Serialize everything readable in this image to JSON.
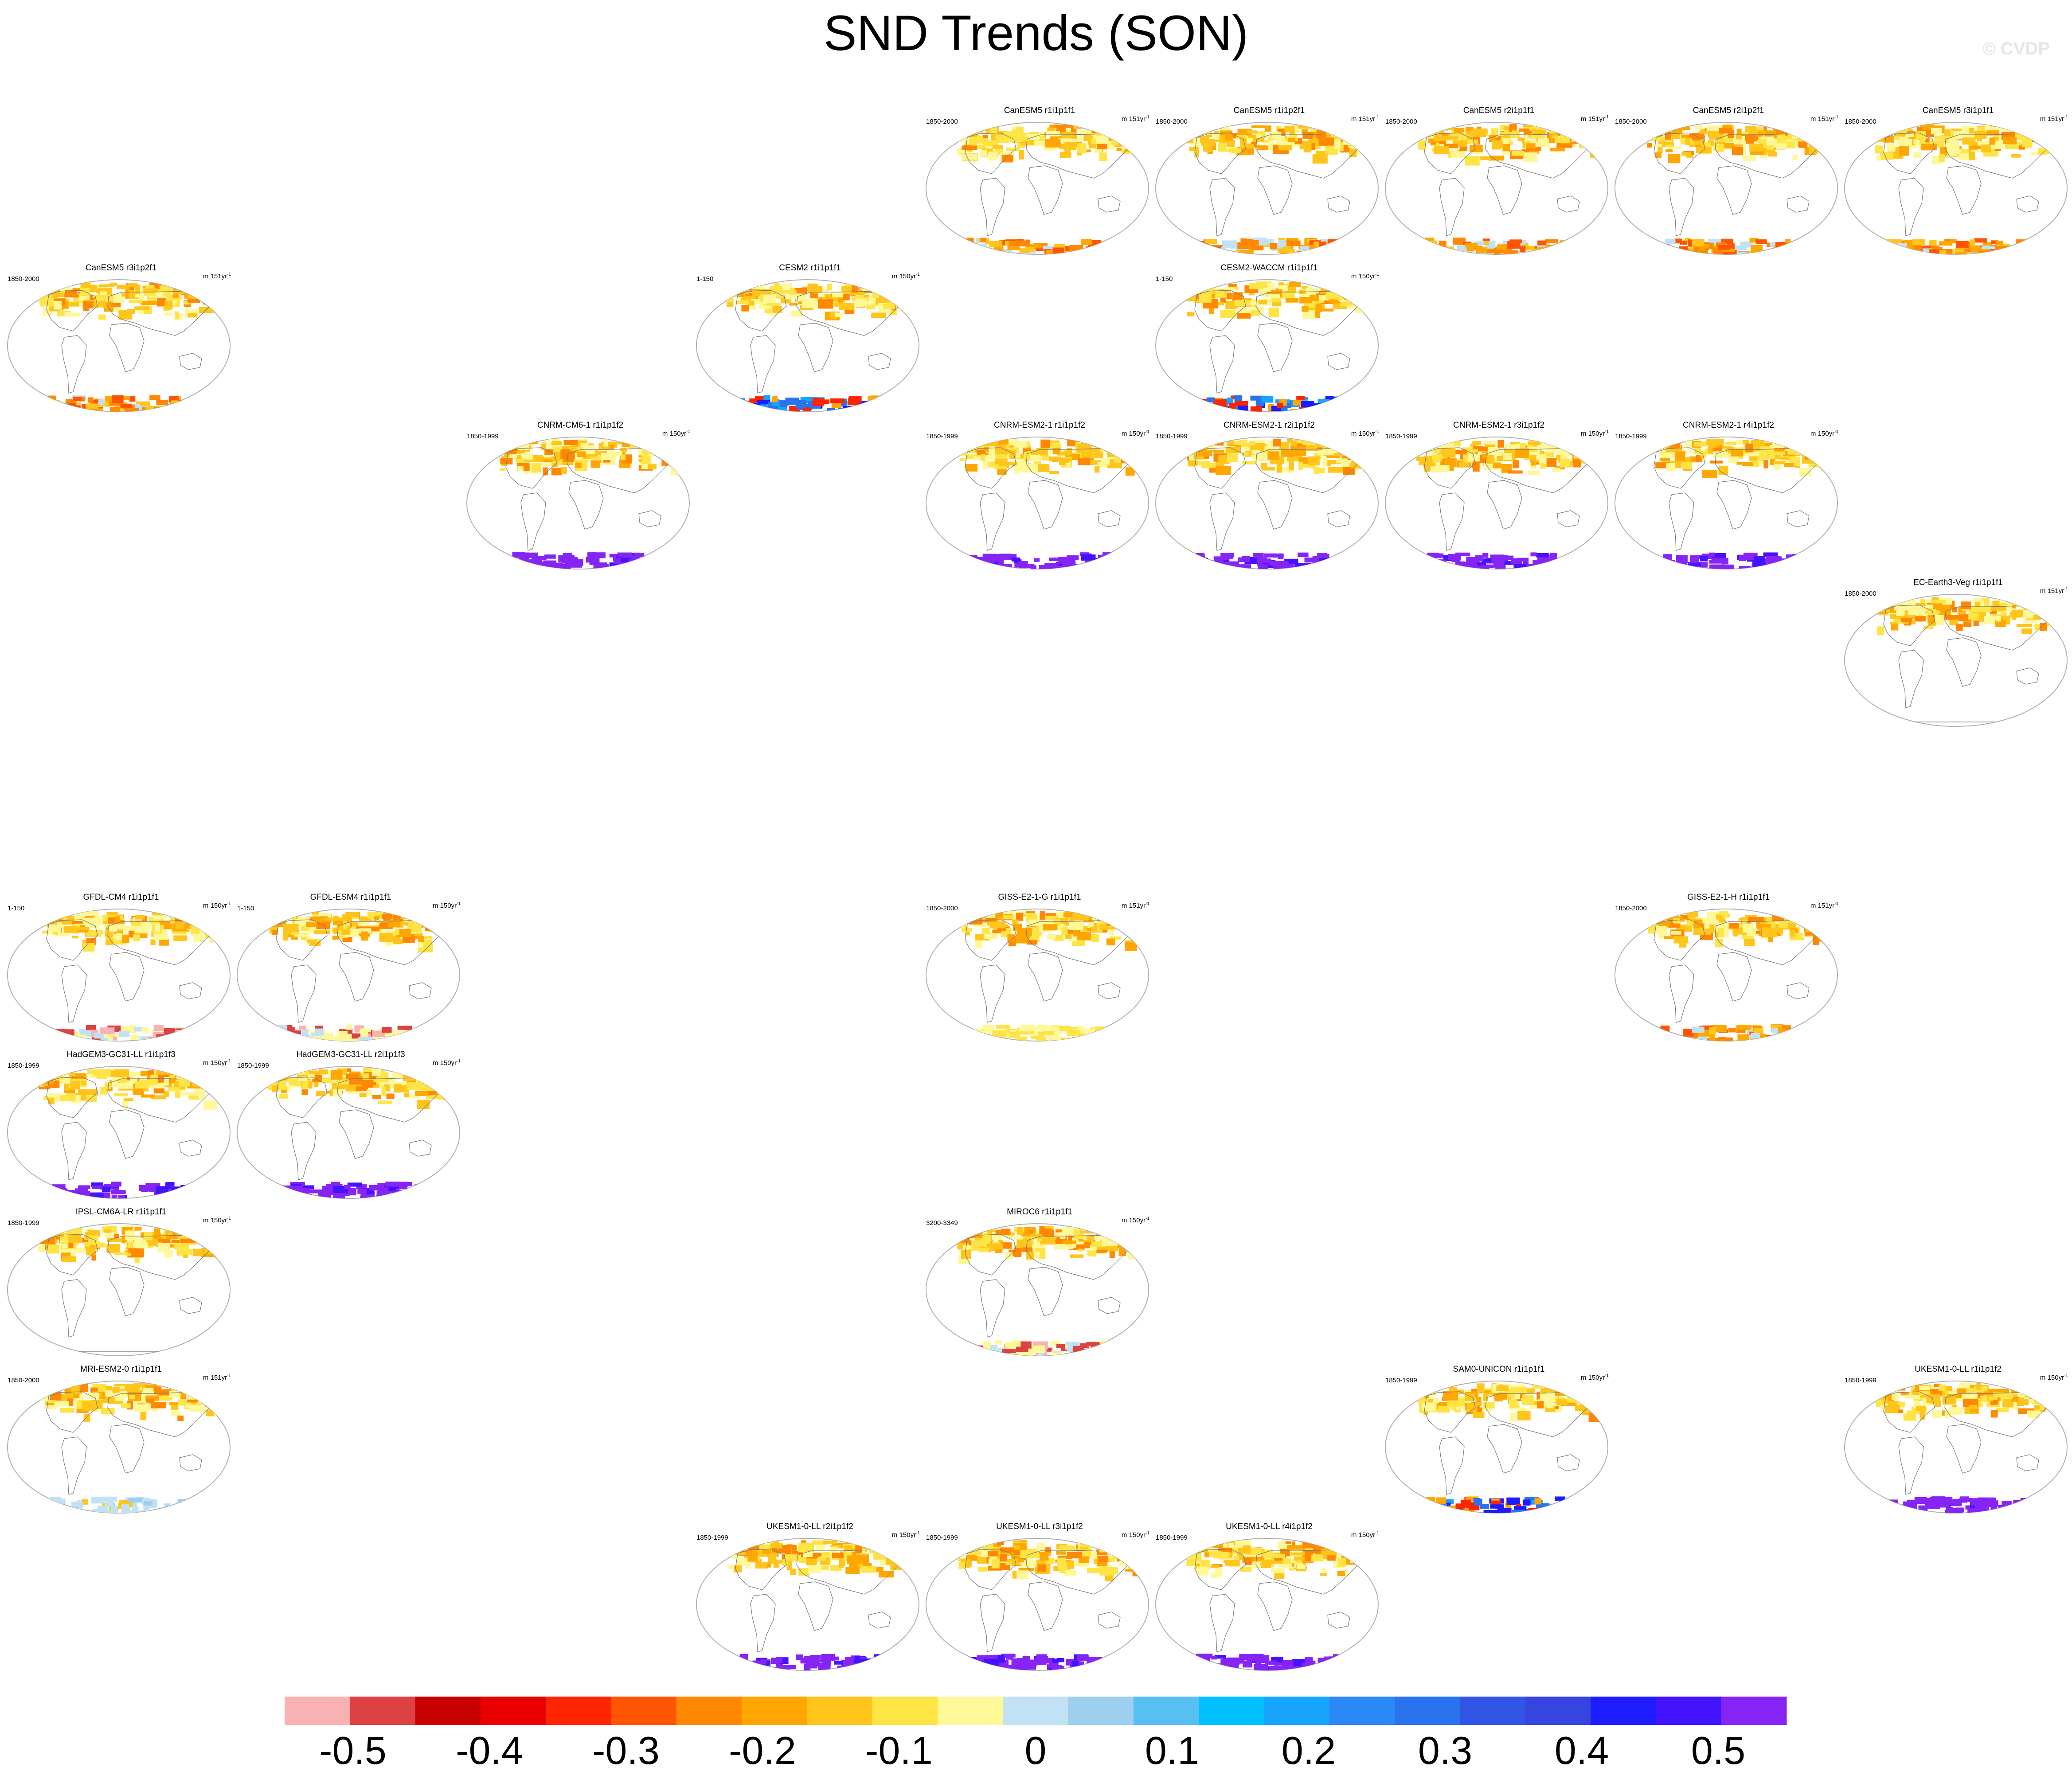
{
  "title": "SND Trends (SON)",
  "watermark": "© CVDP",
  "chart_data": {
    "type": "heatmap",
    "title": "SND Trends (SON)",
    "description_of_panels": "Global map panels of seasonal (SON) snow depth trends per CMIP6 model member; shading shows trend magnitude",
    "colorbar": {
      "min": -0.55,
      "max": 0.55,
      "step": 0.05,
      "tick_labels": [
        "-0.5",
        "-0.4",
        "-0.3",
        "-0.2",
        "-0.1",
        "0",
        "0.1",
        "0.2",
        "0.3",
        "0.4",
        "0.5"
      ],
      "tick_values": [
        -0.5,
        -0.4,
        -0.3,
        -0.2,
        -0.1,
        0,
        0.1,
        0.2,
        0.3,
        0.4,
        0.5
      ],
      "colors": [
        "#f9b2b2",
        "#dd4141",
        "#c90000",
        "#ea0000",
        "#ff2400",
        "#ff5500",
        "#ff8800",
        "#ffa700",
        "#ffc51b",
        "#ffe445",
        "#fff899",
        "#c1e2f5",
        "#9ecfee",
        "#57bff2",
        "#00c0ff",
        "#16a4ff",
        "#2a88f7",
        "#2a73ee",
        "#3355e5",
        "#3645e0",
        "#1c1cff",
        "#4312ff",
        "#8624f5"
      ]
    },
    "panels": [
      {
        "title": "CanESM5 r1i1p1f1",
        "years": "1850-2000",
        "units": "m 151yr",
        "sup": "-1",
        "ns": "nh",
        "ant": "pos",
        "row": 0,
        "col": 4
      },
      {
        "title": "CanESM5 r1i1p2f1",
        "years": "1850-2000",
        "units": "m 151yr",
        "sup": "-1",
        "ns": "nh",
        "ant": "pos",
        "row": 0,
        "col": 5
      },
      {
        "title": "CanESM5 r2i1p1f1",
        "years": "1850-2000",
        "units": "m 151yr",
        "sup": "-1",
        "ns": "nh",
        "ant": "pos",
        "row": 0,
        "col": 6
      },
      {
        "title": "CanESM5 r2i1p2f1",
        "years": "1850-2000",
        "units": "m 151yr",
        "sup": "-1",
        "ns": "nh",
        "ant": "pos",
        "row": 0,
        "col": 7
      },
      {
        "title": "CanESM5 r3i1p1f1",
        "years": "1850-2000",
        "units": "m 151yr",
        "sup": "-1",
        "ns": "nh",
        "ant": "pos",
        "row": 0,
        "col": 8
      },
      {
        "title": "CanESM5 r3i1p2f1",
        "years": "1850-2000",
        "units": "m 151yr",
        "sup": "-1",
        "ns": "nh",
        "ant": "pos",
        "row": 1,
        "col": 0
      },
      {
        "title": "CESM2 r1i1p1f1",
        "years": "1-150",
        "units": "m 150yr",
        "sup": "-1",
        "ns": "nh",
        "ant": "mix",
        "row": 1,
        "col": 3
      },
      {
        "title": "CESM2-WACCM r1i1p1f1",
        "years": "1-150",
        "units": "m 150yr",
        "sup": "-1",
        "ns": "nh",
        "ant": "mix",
        "row": 1,
        "col": 5
      },
      {
        "title": "CNRM-CM6-1 r1i1p1f2",
        "years": "1850-1999",
        "units": "m 150yr",
        "sup": "-1",
        "ns": "nh",
        "ant": "neg",
        "row": 2,
        "col": 2
      },
      {
        "title": "CNRM-ESM2-1 r1i1p1f2",
        "years": "1850-1999",
        "units": "m 150yr",
        "sup": "-1",
        "ns": "nh",
        "ant": "neg",
        "row": 2,
        "col": 4
      },
      {
        "title": "CNRM-ESM2-1 r2i1p1f2",
        "years": "1850-1999",
        "units": "m 150yr",
        "sup": "-1",
        "ns": "nh",
        "ant": "neg",
        "row": 2,
        "col": 5
      },
      {
        "title": "CNRM-ESM2-1 r3i1p1f2",
        "years": "1850-1999",
        "units": "m 150yr",
        "sup": "-1",
        "ns": "nh",
        "ant": "neg",
        "row": 2,
        "col": 6
      },
      {
        "title": "CNRM-ESM2-1 r4i1p1f2",
        "years": "1850-1999",
        "units": "m 150yr",
        "sup": "-1",
        "ns": "nh",
        "ant": "neg",
        "row": 2,
        "col": 7
      },
      {
        "title": "EC-Earth3-Veg r1i1p1f1",
        "years": "1850-2000",
        "units": "m 151yr",
        "sup": "-1",
        "ns": "nh",
        "ant": "none",
        "row": 3,
        "col": 8
      },
      {
        "title": "GFDL-CM4 r1i1p1f1",
        "years": "1-150",
        "units": "m 150yr",
        "sup": "-1",
        "ns": "nh",
        "ant": "light",
        "row": 5,
        "col": 0
      },
      {
        "title": "GFDL-ESM4 r1i1p1f1",
        "years": "1-150",
        "units": "m 150yr",
        "sup": "-1",
        "ns": "nh",
        "ant": "light",
        "row": 5,
        "col": 1
      },
      {
        "title": "GISS-E2-1-G r1i1p1f1",
        "years": "1850-2000",
        "units": "m 151yr",
        "sup": "-1",
        "ns": "nh",
        "ant": "pale",
        "row": 5,
        "col": 4
      },
      {
        "title": "GISS-E2-1-H r1i1p1f1",
        "years": "1850-2000",
        "units": "m 151yr",
        "sup": "-1",
        "ns": "nh",
        "ant": "pos",
        "row": 5,
        "col": 7
      },
      {
        "title": "HadGEM3-GC31-LL r1i1p1f3",
        "years": "1850-1999",
        "units": "m 150yr",
        "sup": "-1",
        "ns": "nh",
        "ant": "neg",
        "row": 6,
        "col": 0
      },
      {
        "title": "HadGEM3-GC31-LL r2i1p1f3",
        "years": "1850-1999",
        "units": "m 150yr",
        "sup": "-1",
        "ns": "nh",
        "ant": "neg",
        "row": 6,
        "col": 1
      },
      {
        "title": "IPSL-CM6A-LR r1i1p1f1",
        "years": "1850-1999",
        "units": "m 150yr",
        "sup": "-1",
        "ns": "nh",
        "ant": "none",
        "row": 7,
        "col": 0
      },
      {
        "title": "MIROC6 r1i1p1f1",
        "years": "3200-3349",
        "units": "m 150yr",
        "sup": "-1",
        "ns": "nh",
        "ant": "light",
        "row": 7,
        "col": 4
      },
      {
        "title": "MRI-ESM2-0 r1i1p1f1",
        "years": "1850-2000",
        "units": "m 151yr",
        "sup": "-1",
        "ns": "nh",
        "ant": "blue",
        "row": 8,
        "col": 0
      },
      {
        "title": "SAM0-UNICON r1i1p1f1",
        "years": "1850-1999",
        "units": "m 150yr",
        "sup": "-1",
        "ns": "nh",
        "ant": "mix",
        "row": 8,
        "col": 6
      },
      {
        "title": "UKESM1-0-LL r1i1p1f2",
        "years": "1850-1999",
        "units": "m 150yr",
        "sup": "-1",
        "ns": "nh",
        "ant": "neg",
        "row": 8,
        "col": 8
      },
      {
        "title": "UKESM1-0-LL r2i1p1f2",
        "years": "1850-1999",
        "units": "m 150yr",
        "sup": "-1",
        "ns": "nh",
        "ant": "neg",
        "row": 9,
        "col": 3
      },
      {
        "title": "UKESM1-0-LL r3i1p1f2",
        "years": "1850-1999",
        "units": "m 150yr",
        "sup": "-1",
        "ns": "nh",
        "ant": "neg",
        "row": 9,
        "col": 4
      },
      {
        "title": "UKESM1-0-LL r4i1p1f2",
        "years": "1850-1999",
        "units": "m 150yr",
        "sup": "-1",
        "ns": "nh",
        "ant": "neg",
        "row": 9,
        "col": 5
      }
    ]
  }
}
